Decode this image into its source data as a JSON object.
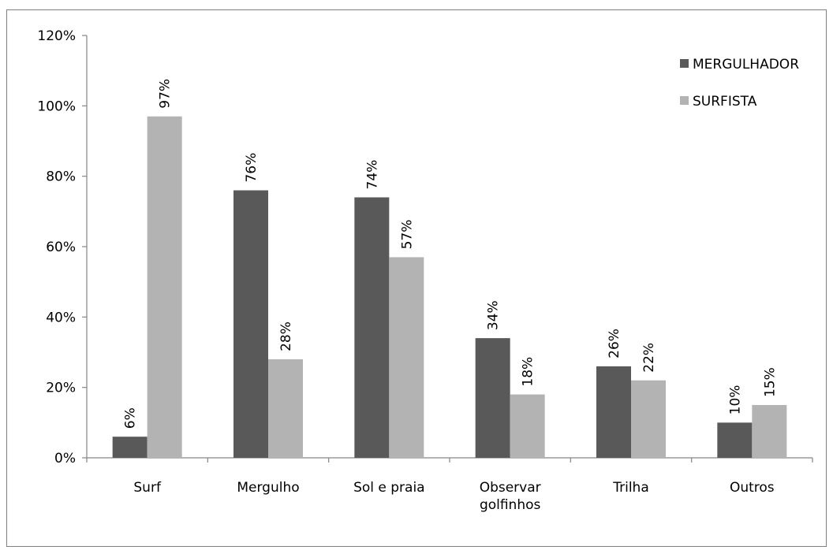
{
  "chart_data": {
    "type": "bar",
    "title": "",
    "xlabel": "",
    "ylabel": "",
    "categories": [
      "Surf",
      "Mergulho",
      "Sol e praia",
      "Observar golfinhos",
      "Trilha",
      "Outros"
    ],
    "category_lines": [
      [
        "Surf"
      ],
      [
        "Mergulho"
      ],
      [
        "Sol e praia"
      ],
      [
        "Observar",
        "golfinhos"
      ],
      [
        "Trilha"
      ],
      [
        "Outros"
      ]
    ],
    "series": [
      {
        "name": "MERGULHADOR",
        "values": [
          6,
          76,
          74,
          34,
          26,
          10
        ],
        "color": "#595959"
      },
      {
        "name": "SURFISTA",
        "values": [
          97,
          28,
          57,
          18,
          22,
          15
        ],
        "color": "#b3b3b3"
      }
    ],
    "value_suffix": "%",
    "ylim": [
      0,
      120
    ],
    "yticks": [
      0,
      20,
      40,
      60,
      80,
      100,
      120
    ],
    "ytick_labels": [
      "0%",
      "20%",
      "40%",
      "60%",
      "80%",
      "100%",
      "120%"
    ],
    "grid": false,
    "legend_position": "top-right"
  }
}
